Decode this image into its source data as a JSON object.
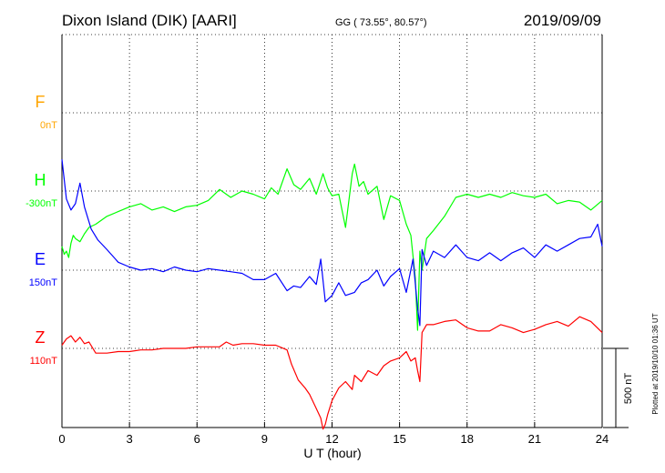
{
  "chart_data": {
    "type": "line",
    "title": "Dixon Island (DIK)  [AARI]",
    "coords": "GG ( 73.55°,  80.57°)",
    "date": "2019/09/09",
    "xlabel": "U T (hour)",
    "xlim": [
      0,
      24
    ],
    "x_ticks": [
      0,
      3,
      6,
      9,
      12,
      15,
      18,
      21,
      24
    ],
    "x_tick_labels": [
      "0",
      "3",
      "6",
      "9",
      "12",
      "15",
      "18",
      "21",
      "24"
    ],
    "grid": true,
    "scale_bar": {
      "value_nT": 500,
      "label": "500 nT"
    },
    "plotted_note": "Plotted at 2019/10/10 01:36 UT",
    "series": [
      {
        "name": "F",
        "baseline_label": "0nT",
        "baseline_nT": 0,
        "color": "#ffa500",
        "x": [],
        "y": []
      },
      {
        "name": "H",
        "baseline_label": "-300nT",
        "baseline_nT": -300,
        "color": "#00ff00",
        "x": [
          0.0,
          0.1,
          0.2,
          0.3,
          0.4,
          0.5,
          0.6,
          0.8,
          1.0,
          1.2,
          1.5,
          2.0,
          2.5,
          3.0,
          3.5,
          4.0,
          4.5,
          5.0,
          5.5,
          6.0,
          6.5,
          7.0,
          7.5,
          8.0,
          8.5,
          9.0,
          9.3,
          9.6,
          10.0,
          10.3,
          10.6,
          11.0,
          11.3,
          11.6,
          11.8,
          12.0,
          12.3,
          12.6,
          12.8,
          12.9,
          13.0,
          13.2,
          13.4,
          13.6,
          14.0,
          14.3,
          14.6,
          15.0,
          15.3,
          15.5,
          15.7,
          15.8,
          15.9,
          16.0,
          16.2,
          16.5,
          17.0,
          17.5,
          18.0,
          18.5,
          19.0,
          19.5,
          20.0,
          20.5,
          21.0,
          21.5,
          22.0,
          22.5,
          23.0,
          23.5,
          24.0
        ],
        "y": [
          -350,
          -400,
          -380,
          -420,
          -330,
          -280,
          -300,
          -320,
          -270,
          -230,
          -210,
          -160,
          -130,
          -100,
          -80,
          -120,
          -100,
          -130,
          -100,
          -90,
          -60,
          10,
          -40,
          0,
          -20,
          -50,
          20,
          -20,
          140,
          40,
          10,
          80,
          -20,
          110,
          20,
          -30,
          -20,
          -230,
          0,
          110,
          170,
          30,
          60,
          -20,
          30,
          -180,
          -30,
          -60,
          -210,
          -280,
          -550,
          -880,
          -380,
          -500,
          -300,
          -250,
          -160,
          -40,
          -20,
          -40,
          -20,
          -40,
          -10,
          -30,
          -40,
          -20,
          -80,
          -60,
          -70,
          -120,
          -60
        ]
      },
      {
        "name": "E",
        "baseline_label": "150nT",
        "baseline_nT": 150,
        "color": "#0000ff",
        "x": [
          0.0,
          0.2,
          0.4,
          0.6,
          0.8,
          1.0,
          1.3,
          1.6,
          2.0,
          2.5,
          3.0,
          3.5,
          4.0,
          4.5,
          5.0,
          5.5,
          6.0,
          6.5,
          7.0,
          7.5,
          8.0,
          8.5,
          9.0,
          9.5,
          10.0,
          10.3,
          10.6,
          11.0,
          11.3,
          11.5,
          11.7,
          12.0,
          12.3,
          12.6,
          13.0,
          13.3,
          13.6,
          14.0,
          14.3,
          14.6,
          15.0,
          15.3,
          15.6,
          15.8,
          15.9,
          16.0,
          16.2,
          16.5,
          17.0,
          17.5,
          18.0,
          18.5,
          19.0,
          19.5,
          20.0,
          20.5,
          21.0,
          21.5,
          22.0,
          22.5,
          23.0,
          23.5,
          23.8,
          24.0
        ],
        "y": [
          700,
          450,
          380,
          420,
          550,
          400,
          260,
          190,
          130,
          50,
          20,
          0,
          10,
          -10,
          20,
          0,
          -10,
          10,
          0,
          -10,
          -20,
          -60,
          -60,
          -20,
          -130,
          -100,
          -110,
          -40,
          -90,
          70,
          -200,
          -160,
          -80,
          -160,
          -140,
          -80,
          -60,
          0,
          -100,
          -40,
          10,
          -140,
          70,
          -240,
          -350,
          130,
          30,
          120,
          80,
          160,
          80,
          60,
          110,
          60,
          110,
          140,
          80,
          160,
          120,
          160,
          200,
          210,
          290,
          150
        ]
      },
      {
        "name": "Z",
        "baseline_label": "110nT",
        "baseline_nT": 110,
        "color": "#ff0000",
        "x": [
          0.0,
          0.2,
          0.4,
          0.6,
          0.8,
          1.0,
          1.2,
          1.5,
          2.0,
          2.5,
          3.0,
          3.5,
          4.0,
          4.5,
          5.0,
          5.5,
          6.0,
          6.5,
          7.0,
          7.3,
          7.6,
          8.0,
          8.5,
          9.0,
          9.5,
          10.0,
          10.2,
          10.5,
          10.8,
          11.0,
          11.3,
          11.5,
          11.6,
          11.7,
          11.8,
          12.0,
          12.3,
          12.6,
          12.9,
          13.0,
          13.3,
          13.6,
          14.0,
          14.3,
          14.6,
          15.0,
          15.3,
          15.5,
          15.7,
          15.8,
          15.9,
          16.0,
          16.2,
          16.5,
          17.0,
          17.5,
          18.0,
          18.5,
          19.0,
          19.5,
          20.0,
          20.5,
          21.0,
          21.5,
          22.0,
          22.5,
          23.0,
          23.5,
          24.0
        ],
        "y": [
          20,
          60,
          80,
          40,
          70,
          30,
          40,
          -30,
          -30,
          -20,
          -20,
          -10,
          -10,
          0,
          0,
          0,
          10,
          10,
          10,
          40,
          20,
          30,
          30,
          20,
          20,
          -10,
          -100,
          -200,
          -250,
          -290,
          -380,
          -440,
          -510,
          -480,
          -420,
          -330,
          -250,
          -210,
          -260,
          -170,
          -210,
          -140,
          -170,
          -110,
          -80,
          -60,
          -20,
          -80,
          -60,
          -140,
          -210,
          100,
          150,
          150,
          170,
          180,
          130,
          110,
          110,
          150,
          130,
          100,
          120,
          150,
          170,
          140,
          200,
          170,
          100
        ]
      }
    ]
  }
}
